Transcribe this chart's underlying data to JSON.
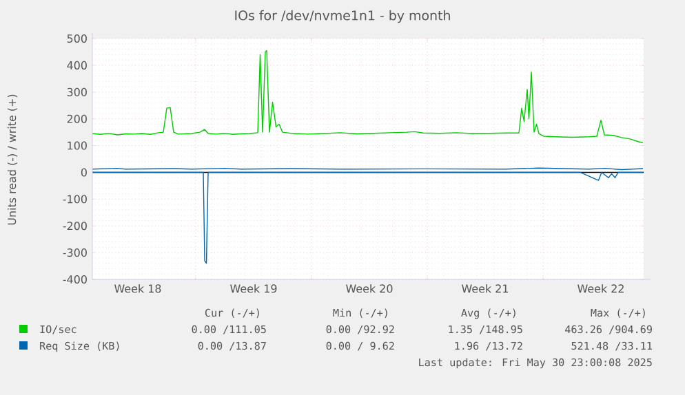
{
  "chart_data": {
    "type": "line",
    "title": "IOs for /dev/nvme1n1 - by month",
    "ylabel": "Units read (-) / write (+)",
    "xlim": [
      "2025-04-27T15:00",
      "2025-05-30T23:00"
    ],
    "ylim": [
      -400,
      500
    ],
    "xticks": [
      {
        "value": "2025-04-30T09:00",
        "label": "Week 18"
      },
      {
        "value": "2025-05-07T09:00",
        "label": "Week 19"
      },
      {
        "value": "2025-05-14T09:00",
        "label": "Week 20"
      },
      {
        "value": "2025-05-21T09:00",
        "label": "Week 21"
      },
      {
        "value": "2025-05-28T09:00",
        "label": "Week 22"
      },
      {
        "value": "2025-05-03T21:00",
        "label": null
      },
      {
        "value": "2025-05-10T21:00",
        "label": null
      },
      {
        "value": "2025-05-17T21:00",
        "label": null
      },
      {
        "value": "2025-05-24T21:00",
        "label": null
      }
    ],
    "yticks": [
      -400,
      -300,
      -200,
      -100,
      0,
      100,
      200,
      300,
      400,
      500
    ],
    "grid": true,
    "legend": "bottom",
    "marker": "none",
    "line_style": "solid",
    "ref_lines": [
      {
        "axis": "y",
        "value": 0,
        "color": "#000000"
      }
    ],
    "series": [
      {
        "name": "IO/sec",
        "color": "#00cc00",
        "x": [
          "2025-04-27T15:00",
          "2025-04-28T03:00",
          "2025-04-28T15:00",
          "2025-04-29T03:00",
          "2025-04-29T15:00",
          "2025-04-30T03:00",
          "2025-04-30T15:00",
          "2025-05-01T03:00",
          "2025-05-01T15:00",
          "2025-05-01T22:00",
          "2025-05-02T03:00",
          "2025-05-02T08:00",
          "2025-05-02T13:00",
          "2025-05-02T20:00",
          "2025-05-03T15:00",
          "2025-05-04T03:00",
          "2025-05-04T10:00",
          "2025-05-04T15:00",
          "2025-05-05T03:00",
          "2025-05-05T15:00",
          "2025-05-06T03:00",
          "2025-05-06T15:00",
          "2025-05-07T03:00",
          "2025-05-07T15:00",
          "2025-05-07T18:30",
          "2025-05-07T22:00",
          "2025-05-08T02:00",
          "2025-05-08T04:00",
          "2025-05-08T08:00",
          "2025-05-08T12:30",
          "2025-05-08T17:30",
          "2025-05-08T22:00",
          "2025-05-09T03:00",
          "2025-05-09T15:00",
          "2025-05-10T15:00",
          "2025-05-11T15:00",
          "2025-05-12T15:00",
          "2025-05-13T15:00",
          "2025-05-14T15:00",
          "2025-05-15T15:00",
          "2025-05-16T15:00",
          "2025-05-17T03:00",
          "2025-05-17T15:00",
          "2025-05-18T15:00",
          "2025-05-19T15:00",
          "2025-05-20T15:00",
          "2025-05-21T15:00",
          "2025-05-22T15:00",
          "2025-05-23T10:00",
          "2025-05-23T14:00",
          "2025-05-23T17:30",
          "2025-05-23T22:00",
          "2025-05-24T00:30",
          "2025-05-24T04:00",
          "2025-05-24T08:00",
          "2025-05-24T11:30",
          "2025-05-24T15:00",
          "2025-05-24T22:00",
          "2025-05-25T15:00",
          "2025-05-26T15:00",
          "2025-05-27T15:00",
          "2025-05-28T03:00",
          "2025-05-28T09:00",
          "2025-05-28T14:00",
          "2025-05-29T03:00",
          "2025-05-29T15:00",
          "2025-05-30T03:00",
          "2025-05-30T15:00",
          "2025-05-30T22:00"
        ],
        "values": [
          145,
          142,
          146,
          140,
          144,
          143,
          145,
          142,
          148,
          150,
          240,
          242,
          150,
          143,
          145,
          150,
          160,
          145,
          143,
          146,
          142,
          144,
          145,
          148,
          440,
          150,
          450,
          455,
          150,
          262,
          170,
          180,
          150,
          146,
          143,
          145,
          148,
          144,
          146,
          148,
          150,
          152,
          147,
          146,
          148,
          145,
          146,
          147,
          147,
          240,
          190,
          310,
          200,
          375,
          150,
          180,
          145,
          135,
          133,
          131,
          133,
          135,
          195,
          140,
          138,
          130,
          125,
          115,
          110
        ]
      },
      {
        "name": "Req Size (KB)",
        "color": "#0066b3",
        "x": [
          "2025-04-27T15:00",
          "2025-04-29T03:00",
          "2025-04-29T15:00",
          "2025-05-02T15:00",
          "2025-05-03T15:00",
          "2025-05-05T15:00",
          "2025-05-06T15:00",
          "2025-05-09T15:00",
          "2025-05-12T15:00",
          "2025-05-17T15:00",
          "2025-05-22T15:00",
          "2025-05-24T15:00",
          "2025-05-27T15:00",
          "2025-05-28T15:00",
          "2025-05-29T15:00",
          "2025-05-30T22:00"
        ],
        "values": [
          12,
          15,
          12,
          14,
          12,
          15,
          12,
          14,
          12,
          13,
          12,
          16,
          12,
          15,
          10,
          14
        ]
      },
      {
        "color": "#0066b3",
        "x": [
          "2025-04-27T15:00",
          "2025-05-04T08:00",
          "2025-05-04T10:00",
          "2025-05-04T12:30",
          "2025-05-04T15:00",
          "2025-05-27T03:00",
          "2025-05-28T05:30",
          "2025-05-28T10:00",
          "2025-05-28T20:00",
          "2025-05-29T00:30",
          "2025-05-29T05:30",
          "2025-05-29T10:00",
          "2025-05-30T22:00"
        ],
        "values": [
          0,
          0,
          -330,
          -340,
          0,
          0,
          -30,
          0,
          -20,
          -5,
          -20,
          0,
          0
        ]
      }
    ],
    "annotations": [
      "Cur (-/+)",
      "Min (-/+)",
      "Avg (-/+)",
      "Max (-/+)",
      "0.00 /111.05",
      "0.00 /92.92",
      "1.35 /148.95",
      "463.26 /904.69",
      "0.00 /13.87",
      "0.00 / 9.62",
      "1.96 /13.72",
      "521.48 /33.11",
      "Last update: Fri May 30 23:00:08 2025"
    ]
  }
}
